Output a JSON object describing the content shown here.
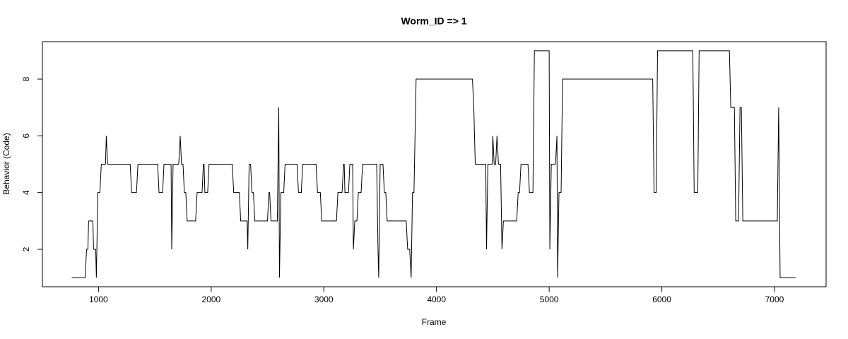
{
  "chart_data": {
    "type": "line",
    "title": "Worm_ID => 1",
    "x_label": "Frame",
    "y_label": "Behavior (Code)",
    "color": "#000000",
    "x": [
      762,
      881,
      894,
      906,
      912,
      950,
      956,
      975,
      981,
      994,
      1012,
      1025,
      1062,
      1069,
      1081,
      1281,
      1294,
      1337,
      1350,
      1525,
      1537,
      1569,
      1581,
      1644,
      1650,
      1662,
      1712,
      1725,
      1737,
      1750,
      1762,
      1775,
      1787,
      1862,
      1875,
      1919,
      1931,
      1937,
      1944,
      1969,
      1981,
      2187,
      2200,
      2250,
      2262,
      2319,
      2325,
      2337,
      2350,
      2362,
      2375,
      2387,
      2500,
      2512,
      2519,
      2531,
      2587,
      2600,
      2606,
      2619,
      2644,
      2656,
      2762,
      2775,
      2800,
      2812,
      2931,
      2944,
      2969,
      2981,
      3112,
      3125,
      3162,
      3175,
      3181,
      3187,
      3219,
      3231,
      3256,
      3262,
      3275,
      3294,
      3306,
      3331,
      3344,
      3469,
      3481,
      3487,
      3500,
      3525,
      3537,
      3550,
      3562,
      3731,
      3744,
      3762,
      3775,
      3787,
      3800,
      3819,
      4319,
      4331,
      4344,
      4437,
      4444,
      4456,
      4494,
      4500,
      4512,
      4525,
      4537,
      4550,
      4569,
      4581,
      4594,
      4712,
      4725,
      4737,
      4750,
      4812,
      4825,
      4856,
      4869,
      5000,
      5006,
      5019,
      5056,
      5069,
      5075,
      5087,
      5106,
      5119,
      5919,
      5931,
      5950,
      5962,
      6275,
      6287,
      6319,
      6331,
      6600,
      6612,
      6644,
      6656,
      6681,
      6694,
      6706,
      6719,
      7025,
      7037,
      7050,
      7187
    ],
    "values": [
      1,
      1,
      2,
      2,
      3,
      3,
      2,
      2,
      1,
      4,
      4,
      5,
      5,
      6,
      5,
      5,
      4,
      4,
      5,
      5,
      4,
      4,
      5,
      5,
      2,
      5,
      5,
      6,
      5,
      5,
      4,
      4,
      3,
      3,
      4,
      4,
      5,
      5,
      4,
      4,
      5,
      5,
      4,
      4,
      3,
      3,
      2,
      5,
      5,
      4,
      4,
      3,
      3,
      4,
      4,
      3,
      3,
      7,
      1,
      4,
      4,
      5,
      5,
      4,
      4,
      5,
      5,
      4,
      4,
      3,
      3,
      4,
      4,
      5,
      5,
      4,
      4,
      5,
      5,
      2,
      3,
      3,
      4,
      4,
      5,
      5,
      2,
      1,
      5,
      5,
      4,
      4,
      3,
      3,
      2,
      2,
      1,
      4,
      4,
      8,
      8,
      7,
      5,
      5,
      2,
      5,
      5,
      6,
      5,
      5,
      6,
      5,
      5,
      2,
      3,
      3,
      4,
      4,
      5,
      5,
      4,
      4,
      9,
      9,
      2,
      5,
      5,
      6,
      1,
      4,
      4,
      8,
      8,
      4,
      4,
      9,
      9,
      4,
      4,
      9,
      9,
      7,
      7,
      3,
      3,
      7,
      7,
      3,
      3,
      7,
      1,
      1
    ],
    "xlim": [
      502,
      7458
    ],
    "ylim": [
      0.68,
      9.32
    ],
    "xticks": [
      1000,
      2000,
      3000,
      4000,
      5000,
      6000,
      7000
    ],
    "yticks": [
      2,
      4,
      6,
      8
    ]
  }
}
